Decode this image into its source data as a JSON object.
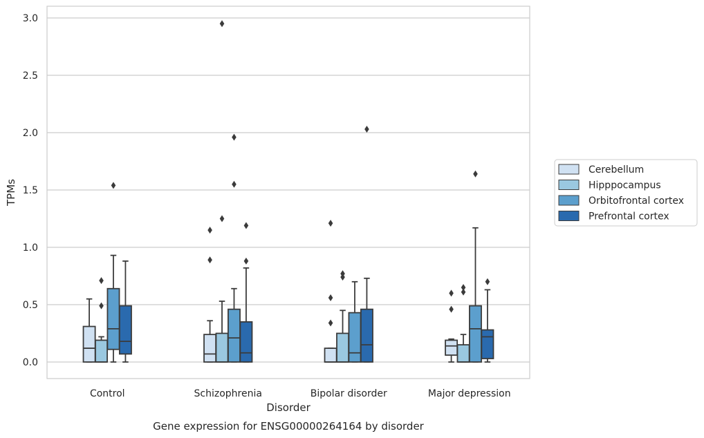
{
  "chart_data": {
    "type": "box",
    "title": "Gene expression for ENSG00000264164 by disorder",
    "xlabel": "Disorder",
    "ylabel": "TPMs",
    "ylim": [
      -0.14,
      3.1
    ],
    "yticks": [
      0.0,
      0.5,
      1.0,
      1.5,
      2.0,
      2.5,
      3.0
    ],
    "ytick_labels": [
      "0.0",
      "0.5",
      "1.0",
      "1.5",
      "2.0",
      "2.5",
      "3.0"
    ],
    "grid": true,
    "legend_position": "outside right",
    "categories": [
      "Control",
      "Schizophrenia",
      "Bipolar disorder",
      "Major depression"
    ],
    "series": [
      {
        "name": "Cerebellum",
        "color": "#d0e1f2",
        "boxes": [
          {
            "whislo": 0.0,
            "q1": 0.0,
            "med": 0.12,
            "q3": 0.31,
            "whishi": 0.55,
            "fliers": []
          },
          {
            "whislo": 0.0,
            "q1": 0.0,
            "med": 0.07,
            "q3": 0.24,
            "whishi": 0.36,
            "fliers": [
              0.89,
              1.15
            ]
          },
          {
            "whislo": 0.0,
            "q1": 0.0,
            "med": 0.0,
            "q3": 0.12,
            "whishi": 0.12,
            "fliers": [
              0.34,
              0.56,
              1.21
            ]
          },
          {
            "whislo": 0.0,
            "q1": 0.06,
            "med": 0.14,
            "q3": 0.19,
            "whishi": 0.2,
            "fliers": [
              0.46,
              0.6
            ]
          }
        ]
      },
      {
        "name": "Hipppocampus",
        "color": "#9ac8e0",
        "boxes": [
          {
            "whislo": 0.0,
            "q1": 0.0,
            "med": 0.0,
            "q3": 0.19,
            "whishi": 0.22,
            "fliers": [
              0.49,
              0.71
            ]
          },
          {
            "whislo": 0.0,
            "q1": 0.0,
            "med": 0.0,
            "q3": 0.25,
            "whishi": 0.53,
            "fliers": [
              1.25,
              2.95
            ]
          },
          {
            "whislo": 0.0,
            "q1": 0.0,
            "med": 0.0,
            "q3": 0.25,
            "whishi": 0.45,
            "fliers": [
              0.74,
              0.77
            ]
          },
          {
            "whislo": 0.0,
            "q1": 0.0,
            "med": 0.0,
            "q3": 0.15,
            "whishi": 0.24,
            "fliers": [
              0.61,
              0.65
            ]
          }
        ]
      },
      {
        "name": "Orbitofrontal cortex",
        "color": "#5c9fcd",
        "boxes": [
          {
            "whislo": 0.0,
            "q1": 0.11,
            "med": 0.29,
            "q3": 0.64,
            "whishi": 0.93,
            "fliers": [
              1.54
            ]
          },
          {
            "whislo": 0.0,
            "q1": 0.0,
            "med": 0.21,
            "q3": 0.46,
            "whishi": 0.64,
            "fliers": [
              1.55,
              1.96
            ]
          },
          {
            "whislo": 0.0,
            "q1": 0.0,
            "med": 0.08,
            "q3": 0.43,
            "whishi": 0.7,
            "fliers": []
          },
          {
            "whislo": 0.0,
            "q1": 0.0,
            "med": 0.29,
            "q3": 0.49,
            "whishi": 1.17,
            "fliers": [
              1.64
            ]
          }
        ]
      },
      {
        "name": "Prefrontal cortex",
        "color": "#2a6aae",
        "boxes": [
          {
            "whislo": 0.0,
            "q1": 0.07,
            "med": 0.18,
            "q3": 0.49,
            "whishi": 0.88,
            "fliers": []
          },
          {
            "whislo": 0.0,
            "q1": 0.0,
            "med": 0.08,
            "q3": 0.35,
            "whishi": 0.82,
            "fliers": [
              0.88,
              1.19
            ]
          },
          {
            "whislo": 0.0,
            "q1": 0.0,
            "med": 0.15,
            "q3": 0.46,
            "whishi": 0.73,
            "fliers": [
              2.03
            ]
          },
          {
            "whislo": 0.0,
            "q1": 0.03,
            "med": 0.22,
            "q3": 0.28,
            "whishi": 0.63,
            "fliers": [
              0.7
            ]
          }
        ]
      }
    ]
  }
}
